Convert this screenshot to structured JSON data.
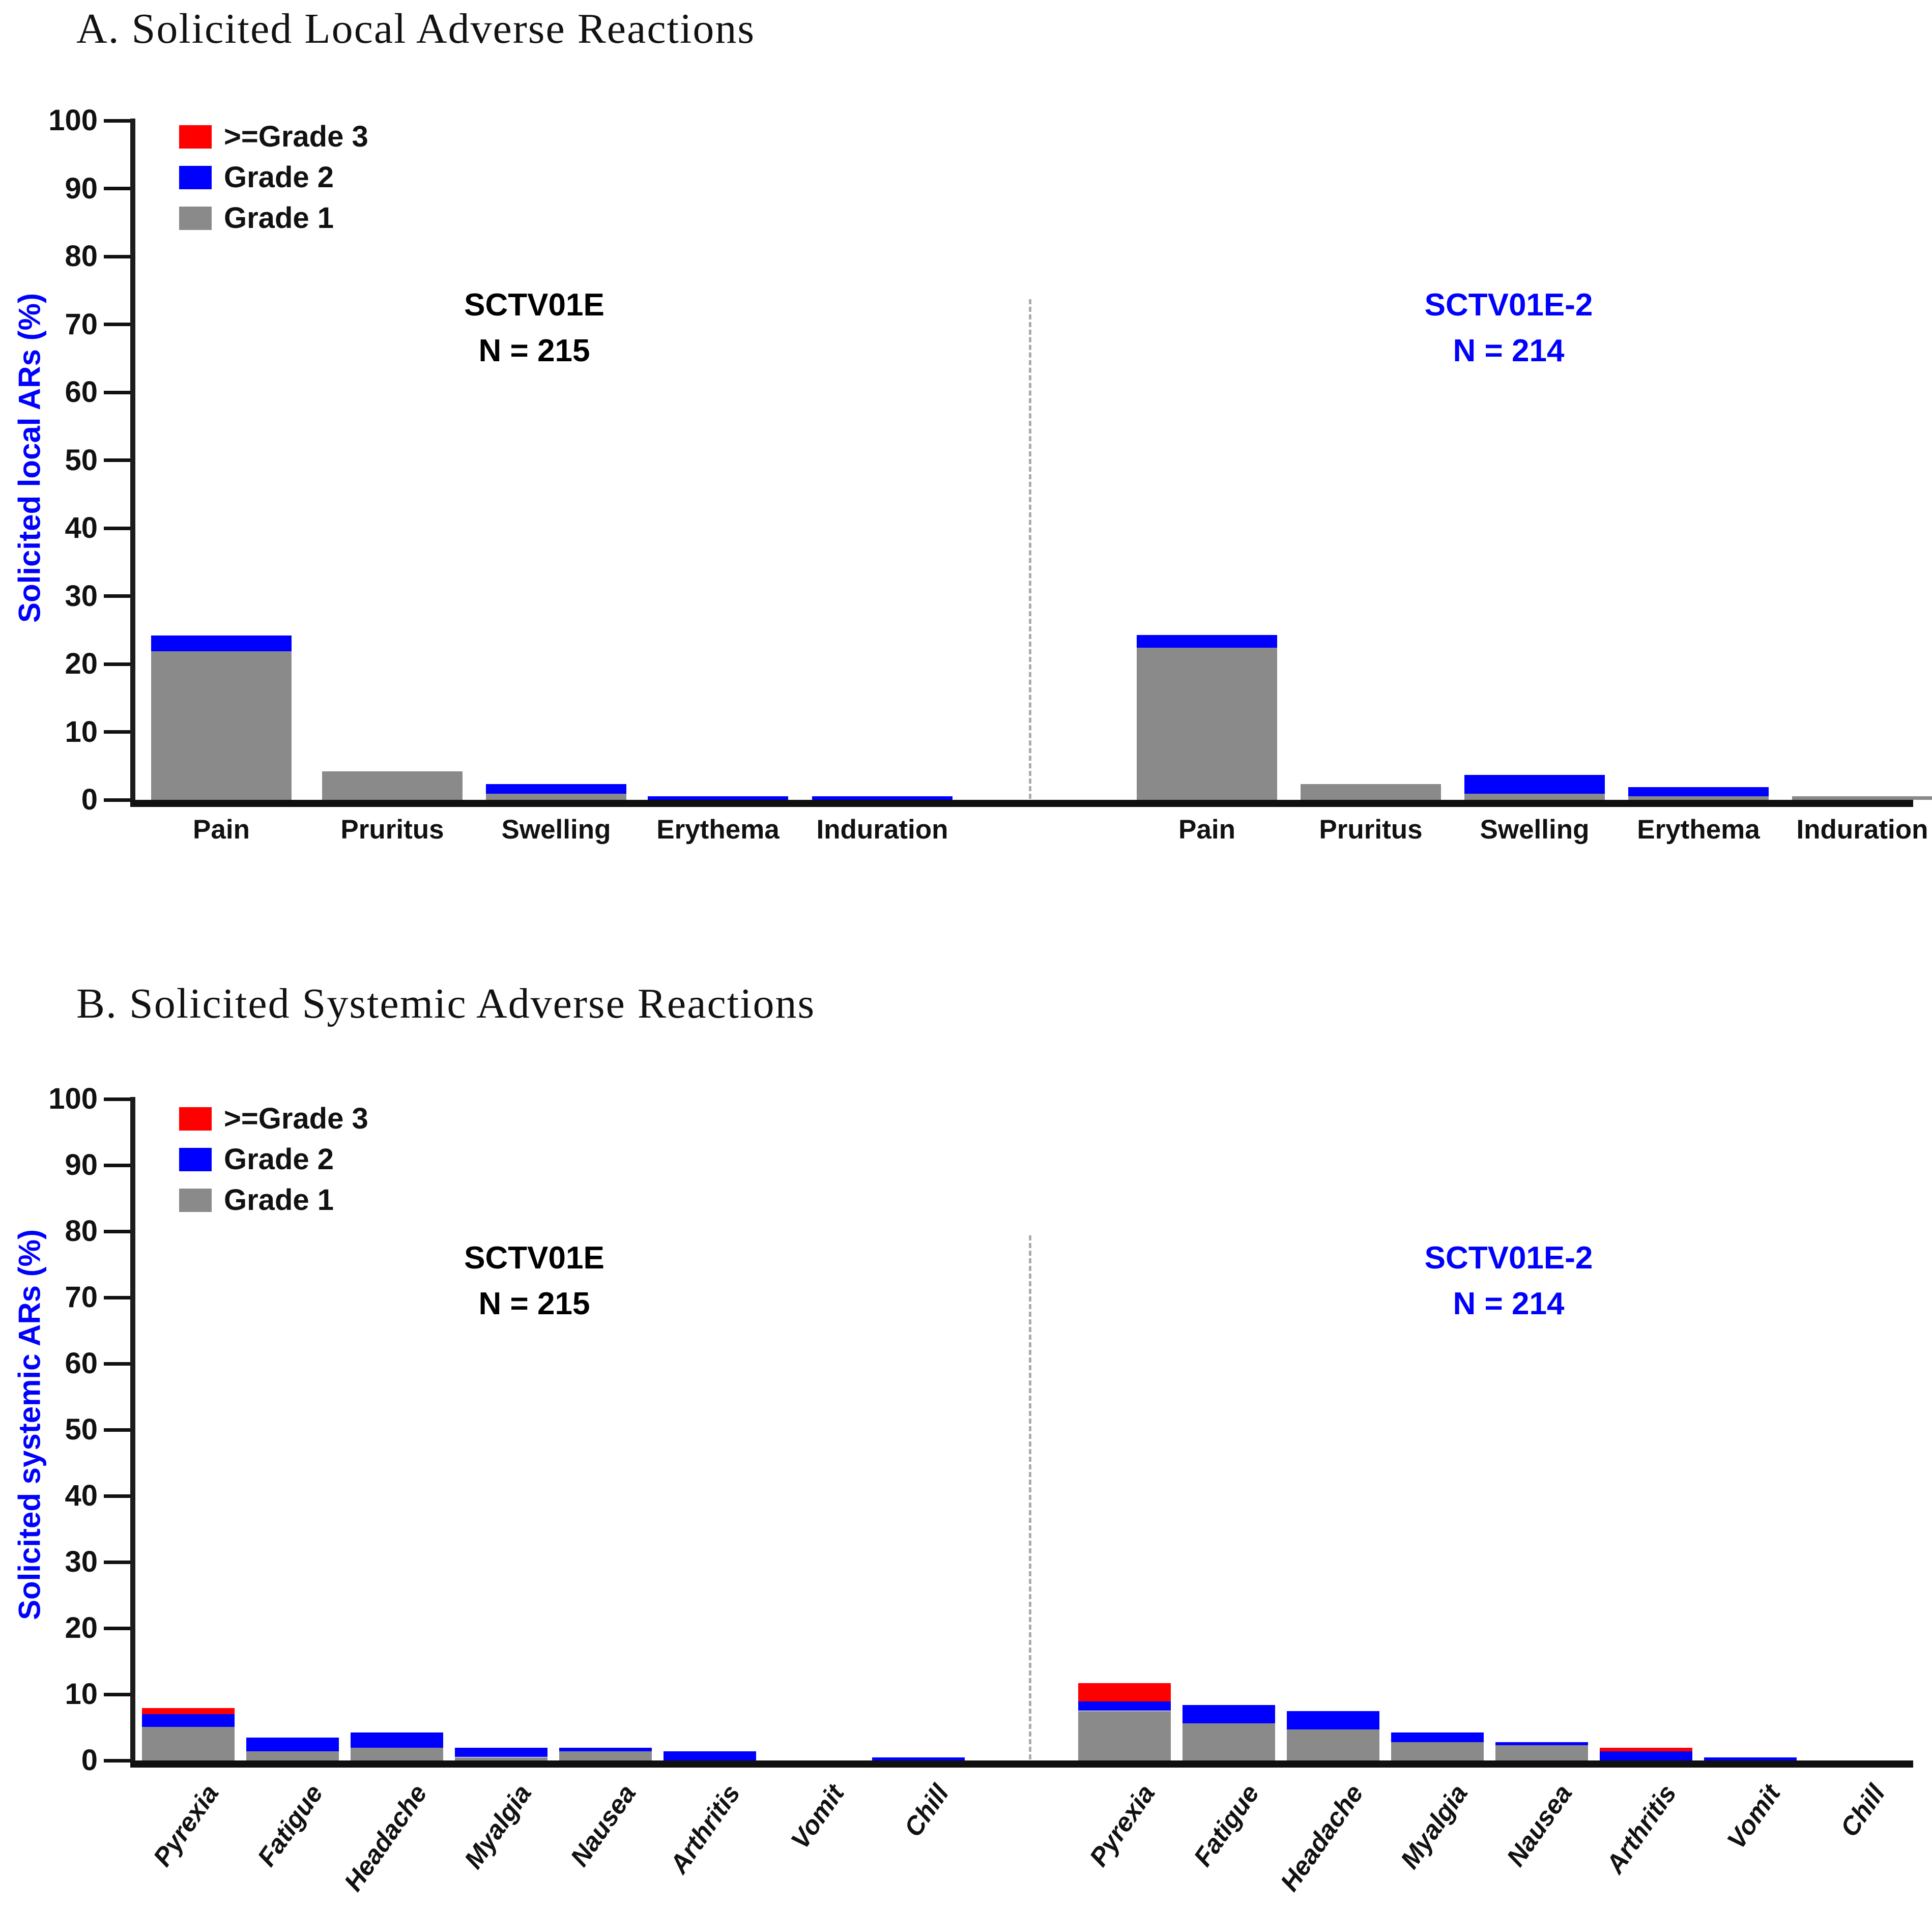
{
  "page": {
    "background": "#ffffff"
  },
  "colors": {
    "grade3": "#fe0000",
    "grade2": "#0000fe",
    "grade1": "#8a8a8a",
    "axis": "#1c1c1c",
    "divider": "#ababab",
    "group_label_left": "#000000",
    "group_label_right": "#0000fe",
    "y_title": "#0000fe"
  },
  "chart_data": [
    {
      "type": "bar",
      "stacked": true,
      "panel": "A",
      "title": "A. Solicited Local Adverse Reactions",
      "ylabel": "Solicited local ARs (%)",
      "xlabel": "",
      "ylim": [
        0,
        100
      ],
      "yticks": [
        0,
        10,
        20,
        30,
        40,
        50,
        60,
        70,
        80,
        90,
        100
      ],
      "grid": false,
      "legend_position": "top-left",
      "legend": [
        {
          "label": ">=Grade 3",
          "color": "#fe0000"
        },
        {
          "label": "Grade 2",
          "color": "#0000fe"
        },
        {
          "label": "Grade 1",
          "color": "#8a8a8a"
        }
      ],
      "categories": [
        "Pain",
        "Pruritus",
        "Swelling",
        "Erythema",
        "Induration"
      ],
      "groups": [
        {
          "name": "SCTV01E",
          "n_label": "N = 215",
          "label_color": "#000000",
          "series": [
            {
              "name": "Grade 1",
              "color": "#8a8a8a",
              "values": [
                21.9,
                4.2,
                0.9,
                0,
                0
              ]
            },
            {
              "name": "Grade 2",
              "color": "#0000fe",
              "values": [
                2.3,
                0,
                1.4,
                0.5,
                0.5
              ]
            },
            {
              "name": ">=Grade 3",
              "color": "#fe0000",
              "values": [
                0,
                0,
                0,
                0,
                0
              ]
            }
          ]
        },
        {
          "name": "SCTV01E-2",
          "n_label": "N = 214",
          "label_color": "#0000fe",
          "series": [
            {
              "name": "Grade 1",
              "color": "#8a8a8a",
              "values": [
                22.4,
                2.3,
                0.9,
                0.5,
                0.5
              ]
            },
            {
              "name": "Grade 2",
              "color": "#0000fe",
              "values": [
                1.9,
                0,
                2.8,
                1.4,
                0
              ]
            },
            {
              "name": ">=Grade 3",
              "color": "#fe0000",
              "values": [
                0,
                0,
                0,
                0,
                0
              ]
            }
          ]
        }
      ]
    },
    {
      "type": "bar",
      "stacked": true,
      "panel": "B",
      "title": "B. Solicited Systemic Adverse Reactions",
      "ylabel": "Solicited systemic ARs (%)",
      "xlabel": "",
      "ylim": [
        0,
        100
      ],
      "yticks": [
        0,
        10,
        20,
        30,
        40,
        50,
        60,
        70,
        80,
        90,
        100
      ],
      "grid": false,
      "legend_position": "top-left",
      "legend": [
        {
          "label": ">=Grade 3",
          "color": "#fe0000"
        },
        {
          "label": "Grade 2",
          "color": "#0000fe"
        },
        {
          "label": "Grade 1",
          "color": "#8a8a8a"
        }
      ],
      "categories": [
        "Pyrexia",
        "Fatigue",
        "Headache",
        "Myalgia",
        "Nausea",
        "Arthritis",
        "Vomit",
        "Chill"
      ],
      "groups": [
        {
          "name": "SCTV01E",
          "n_label": "N = 215",
          "label_color": "#000000",
          "series": [
            {
              "name": "Grade 1",
              "color": "#8a8a8a",
              "values": [
                5.1,
                1.4,
                1.9,
                0.5,
                1.4,
                0,
                0,
                0
              ]
            },
            {
              "name": "Grade 2",
              "color": "#0000fe",
              "values": [
                1.9,
                2.1,
                2.3,
                1.4,
                0.5,
                1.4,
                0,
                0.5
              ]
            },
            {
              "name": ">=Grade 3",
              "color": "#fe0000",
              "values": [
                0.9,
                0,
                0,
                0,
                0,
                0,
                0,
                0
              ]
            }
          ]
        },
        {
          "name": "SCTV01E-2",
          "n_label": "N = 214",
          "label_color": "#0000fe",
          "series": [
            {
              "name": "Grade 1",
              "color": "#8a8a8a",
              "values": [
                7.5,
                5.6,
                4.7,
                2.8,
                2.3,
                0,
                0,
                0
              ]
            },
            {
              "name": "Grade 2",
              "color": "#0000fe",
              "values": [
                1.4,
                2.8,
                2.8,
                1.4,
                0.5,
                1.4,
                0.5,
                0
              ]
            },
            {
              "name": ">=Grade 3",
              "color": "#fe0000",
              "values": [
                2.8,
                0,
                0,
                0,
                0,
                0.5,
                0,
                0
              ]
            }
          ]
        }
      ]
    }
  ]
}
